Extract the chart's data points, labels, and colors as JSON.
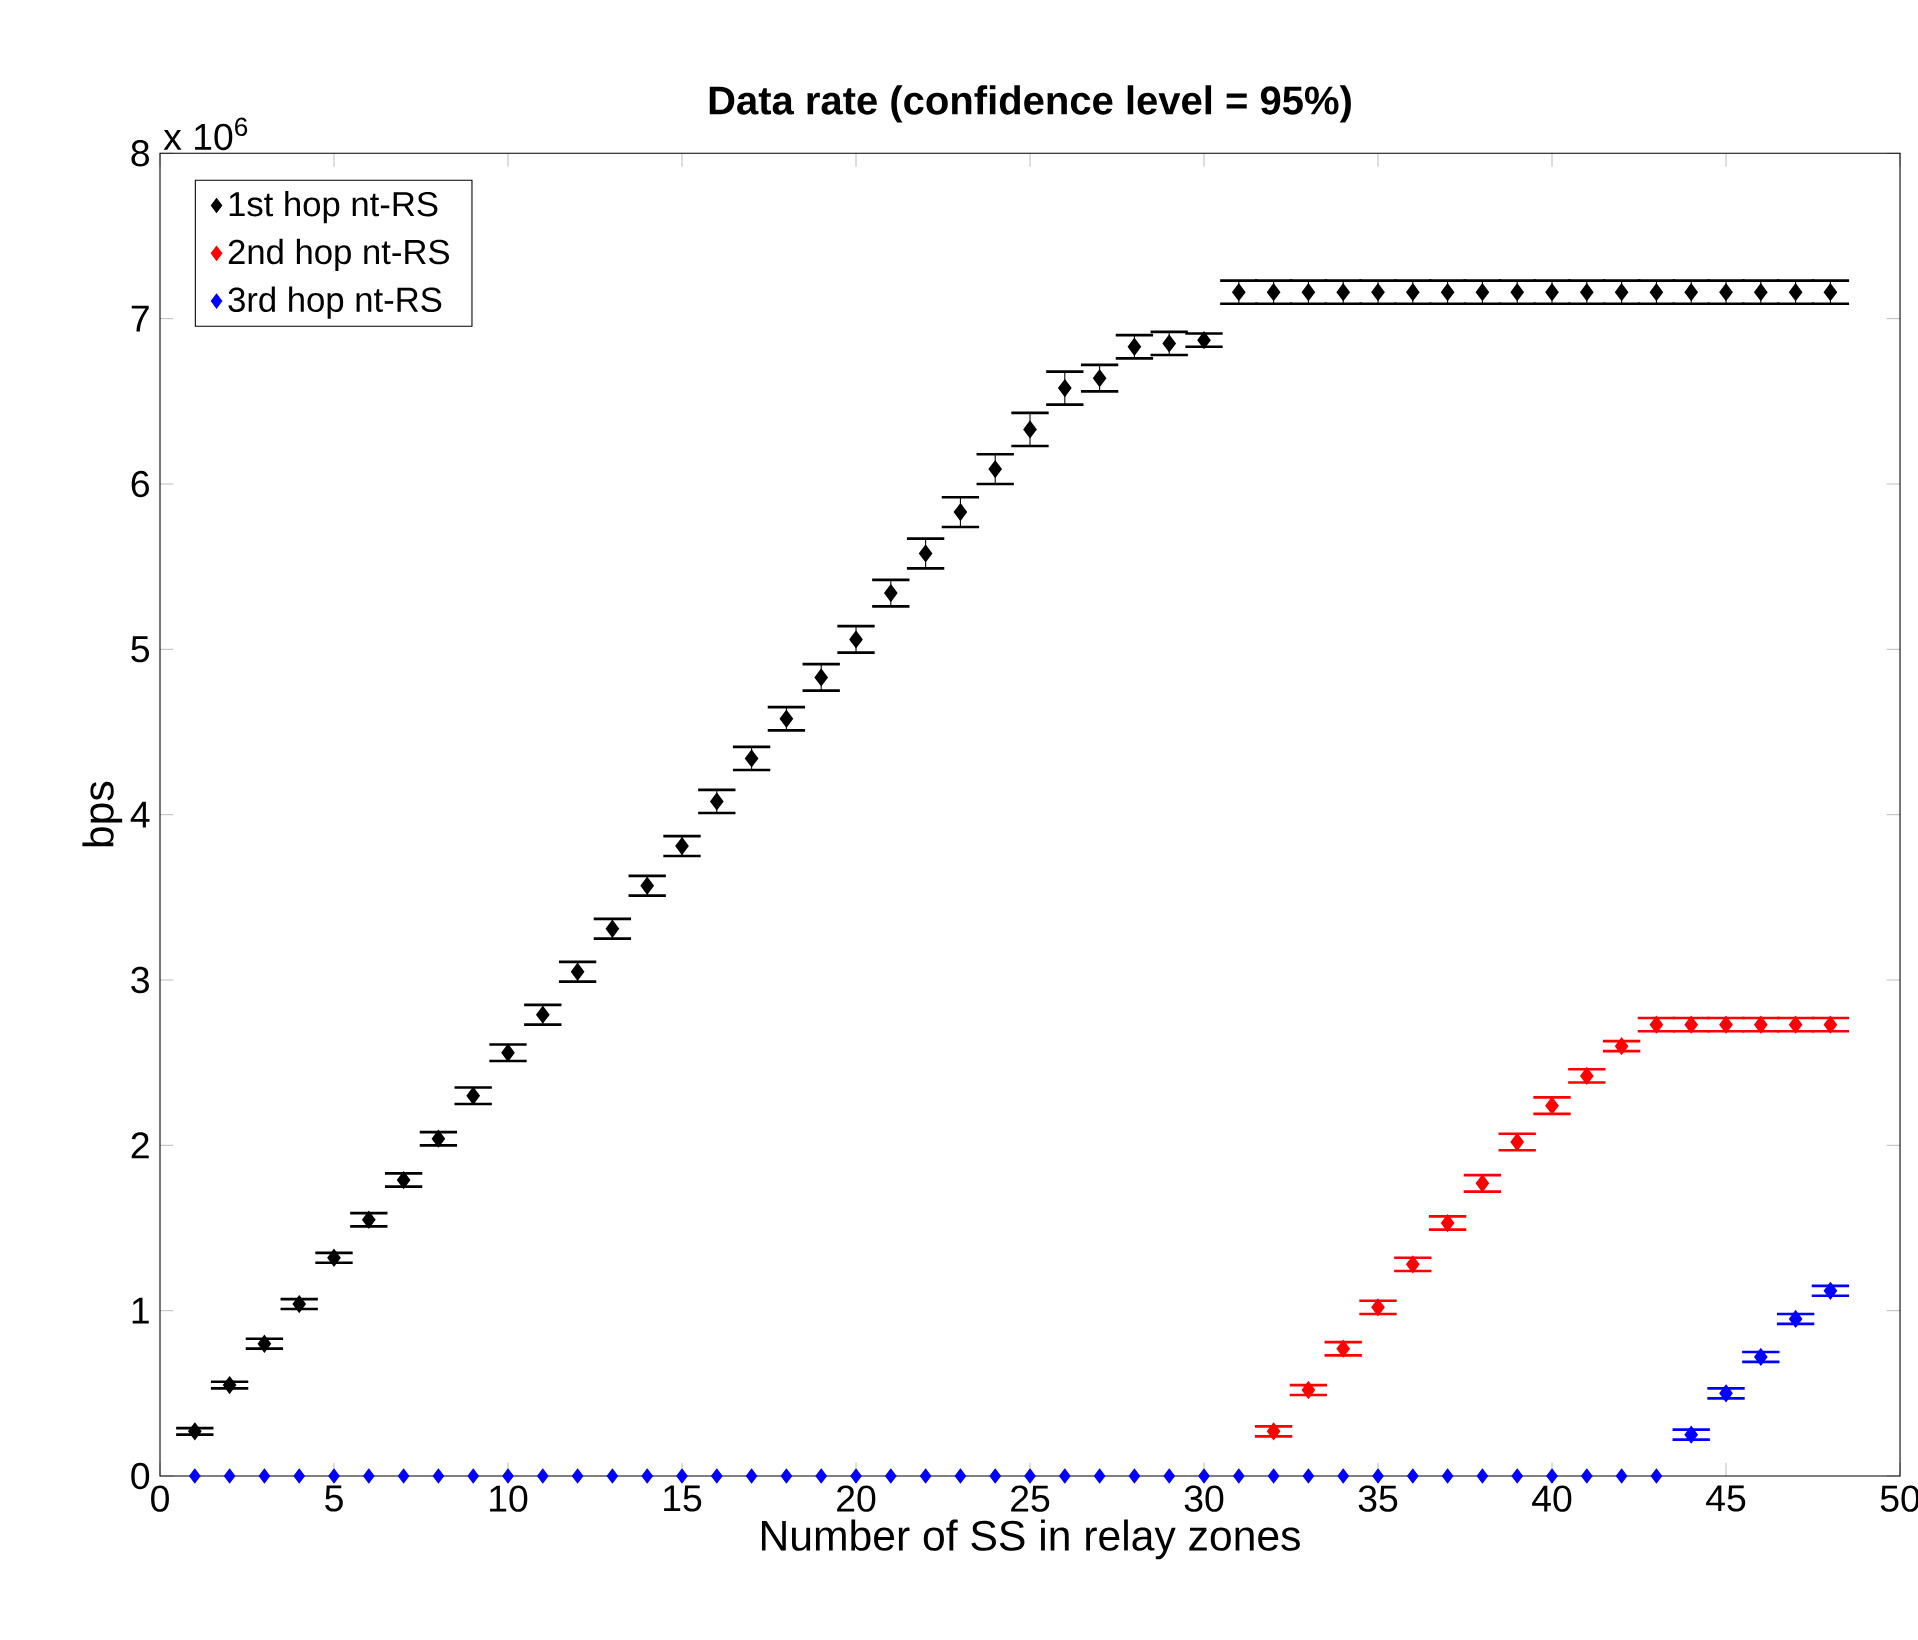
{
  "chart_data": {
    "type": "scatter",
    "title": "Data rate (confidence level = 95%)",
    "xlabel": "Number of SS in relay zones",
    "ylabel": "bps",
    "annotations": [
      "x 10$^{6}$"
    ],
    "x": [
      1,
      2,
      3,
      4,
      5,
      6,
      7,
      8,
      9,
      10,
      11,
      12,
      13,
      14,
      15,
      16,
      17,
      18,
      19,
      20,
      21,
      22,
      23,
      24,
      25,
      26,
      27,
      28,
      29,
      30,
      31,
      32,
      33,
      34,
      35,
      36,
      37,
      38,
      39,
      40,
      41,
      42,
      43,
      44,
      45,
      46,
      47,
      48
    ],
    "series": [
      {
        "name": "1st hop nt-RS",
        "color": "#000000",
        "values": [
          0.27,
          0.55,
          0.8,
          1.04,
          1.32,
          1.55,
          1.79,
          2.04,
          2.3,
          2.56,
          2.79,
          3.05,
          3.31,
          3.57,
          3.81,
          4.08,
          4.34,
          4.58,
          4.83,
          5.06,
          5.34,
          5.58,
          5.83,
          6.09,
          6.33,
          6.58,
          6.64,
          6.83,
          6.85,
          6.87,
          7.16,
          7.16,
          7.16,
          7.16,
          7.16,
          7.16,
          7.16,
          7.16,
          7.16,
          7.16,
          7.16,
          7.16,
          7.16,
          7.16,
          7.16,
          7.16,
          7.16,
          7.16
        ],
        "errors": [
          0.02,
          0.02,
          0.03,
          0.03,
          0.03,
          0.04,
          0.04,
          0.04,
          0.05,
          0.05,
          0.06,
          0.06,
          0.06,
          0.06,
          0.06,
          0.07,
          0.07,
          0.07,
          0.08,
          0.08,
          0.08,
          0.09,
          0.09,
          0.09,
          0.1,
          0.1,
          0.08,
          0.07,
          0.07,
          0.04,
          0.07,
          0.07,
          0.07,
          0.07,
          0.07,
          0.07,
          0.07,
          0.07,
          0.07,
          0.07,
          0.07,
          0.07,
          0.07,
          0.07,
          0.07,
          0.07,
          0.07,
          0.07
        ]
      },
      {
        "name": "2nd hop nt-RS",
        "color": "#ff0000",
        "values": [
          null,
          null,
          null,
          null,
          null,
          null,
          null,
          null,
          null,
          null,
          null,
          null,
          null,
          null,
          null,
          null,
          null,
          null,
          null,
          null,
          null,
          null,
          null,
          null,
          null,
          null,
          null,
          null,
          null,
          null,
          null,
          0.27,
          0.52,
          0.77,
          1.02,
          1.28,
          1.53,
          1.77,
          2.02,
          2.24,
          2.42,
          2.6,
          2.73,
          2.73,
          2.73,
          2.73,
          2.73,
          2.73
        ],
        "errors": [
          null,
          null,
          null,
          null,
          null,
          null,
          null,
          null,
          null,
          null,
          null,
          null,
          null,
          null,
          null,
          null,
          null,
          null,
          null,
          null,
          null,
          null,
          null,
          null,
          null,
          null,
          null,
          null,
          null,
          null,
          null,
          0.03,
          0.03,
          0.04,
          0.04,
          0.04,
          0.04,
          0.05,
          0.05,
          0.05,
          0.04,
          0.03,
          0.04,
          0.04,
          0.04,
          0.04,
          0.04,
          0.04
        ]
      },
      {
        "name": "3rd hop nt-RS",
        "color": "#0000ff",
        "values": [
          0,
          0,
          0,
          0,
          0,
          0,
          0,
          0,
          0,
          0,
          0,
          0,
          0,
          0,
          0,
          0,
          0,
          0,
          0,
          0,
          0,
          0,
          0,
          0,
          0,
          0,
          0,
          0,
          0,
          0,
          0,
          0,
          0,
          0,
          0,
          0,
          0,
          0,
          0,
          0,
          0,
          0,
          0,
          0.25,
          0.5,
          0.72,
          0.95,
          1.12
        ],
        "errors": [
          null,
          null,
          null,
          null,
          null,
          null,
          null,
          null,
          null,
          null,
          null,
          null,
          null,
          null,
          null,
          null,
          null,
          null,
          null,
          null,
          null,
          null,
          null,
          null,
          null,
          null,
          null,
          null,
          null,
          null,
          null,
          null,
          null,
          null,
          null,
          null,
          null,
          null,
          null,
          null,
          null,
          null,
          null,
          0.03,
          0.03,
          0.03,
          0.03,
          0.03
        ]
      }
    ],
    "xlim": [
      0,
      50
    ],
    "ylim": [
      0,
      8
    ],
    "xticks": [
      0,
      5,
      10,
      15,
      20,
      25,
      30,
      35,
      40,
      45,
      50
    ],
    "yticks": [
      0,
      1,
      2,
      3,
      4,
      5,
      6,
      7,
      8
    ],
    "marker": "diamond",
    "legend": "top left",
    "grid": false
  }
}
